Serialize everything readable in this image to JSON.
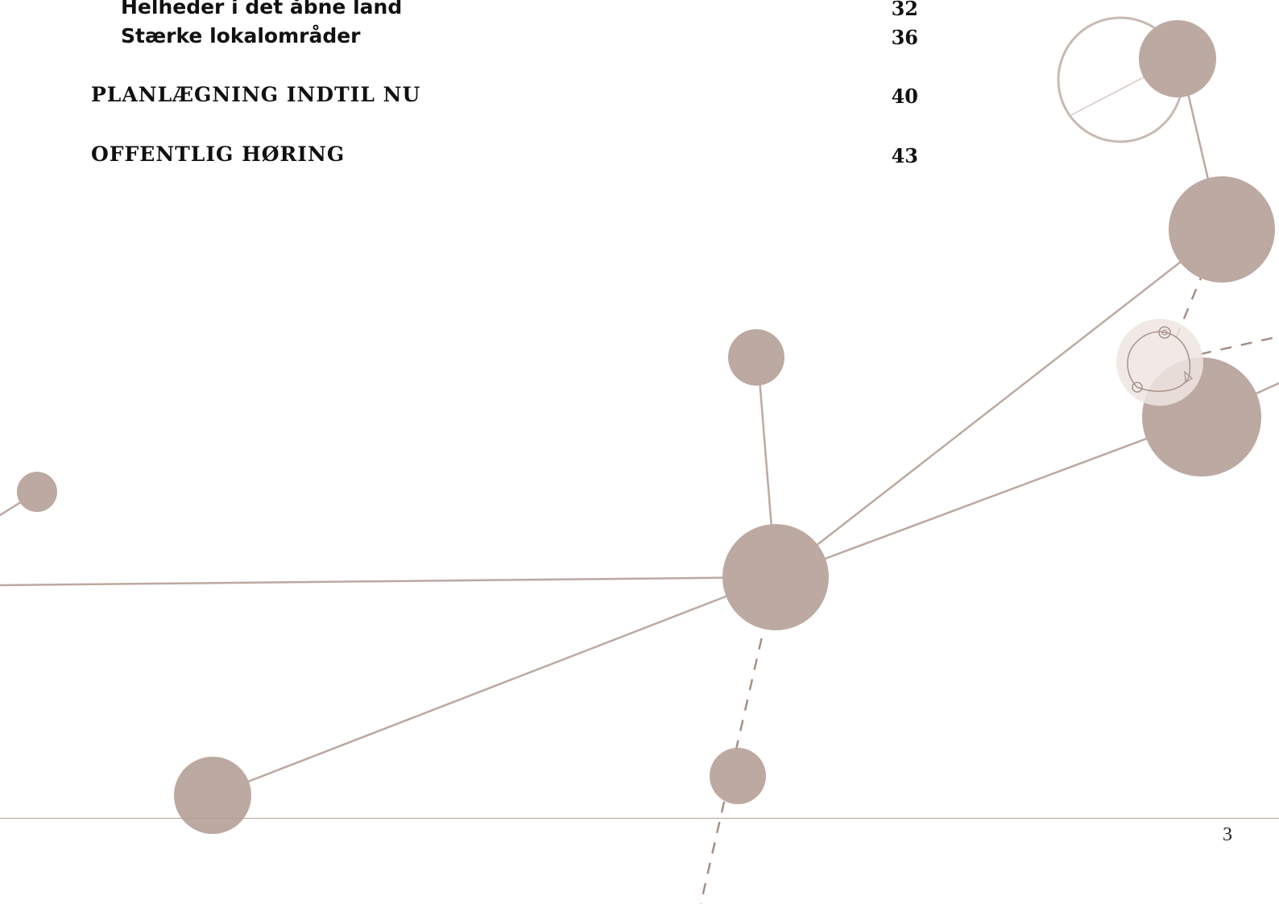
{
  "toc": {
    "entries": [
      {
        "label": "Helheder i det åbne land",
        "page": "32",
        "level": "sub"
      },
      {
        "label": "Stærke lokalområder",
        "page": "36",
        "level": "sub"
      },
      {
        "label": "PLANLÆGNING INDTIL NU",
        "page": "40",
        "level": "main"
      },
      {
        "label": "OFFENTLIG HØRING",
        "page": "43",
        "level": "main"
      }
    ]
  },
  "footer": {
    "page_number": "3"
  },
  "colors": {
    "node_fill": "#bca9a1",
    "line": "#bca9a1",
    "rule": "#b89e90",
    "ghost_fill": "#efe5e1",
    "ghost_stroke": "#a8938a"
  }
}
